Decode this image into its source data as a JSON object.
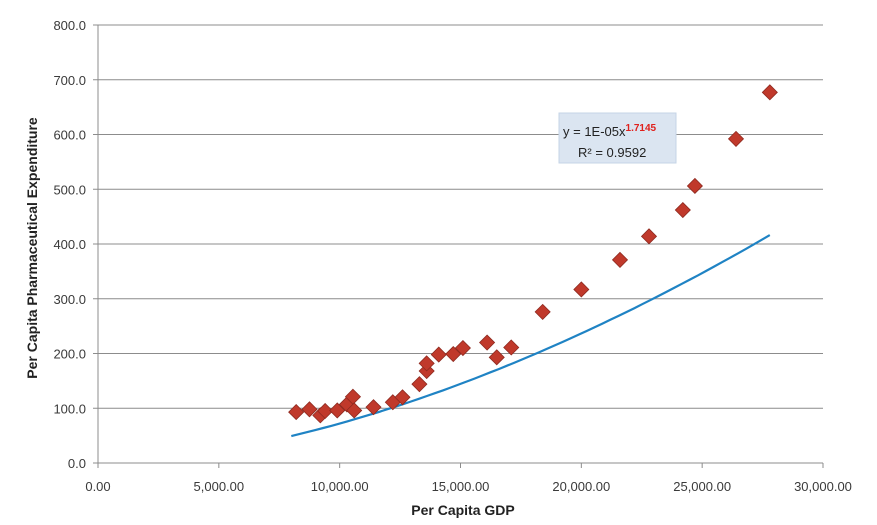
{
  "chart_data": {
    "type": "scatter",
    "title": "",
    "xlabel": "Per Capita GDP",
    "ylabel": "Per Capita Pharmaceutical Expenditure",
    "xlim": [
      0,
      30000
    ],
    "ylim": [
      0,
      800
    ],
    "x_ticks": [
      "0.00",
      "5,000.00",
      "10,000.00",
      "15,000.00",
      "20,000.00",
      "25,000.00",
      "30,000.00"
    ],
    "y_ticks": [
      "0.0",
      "100.0",
      "200.0",
      "300.0",
      "400.0",
      "500.0",
      "600.0",
      "700.0",
      "800.0"
    ],
    "grid": "horizontal",
    "marker_color": "#c0392b",
    "trendline_color": "#1f83c4",
    "points": [
      {
        "x": 8200,
        "y": 93
      },
      {
        "x": 8750,
        "y": 98
      },
      {
        "x": 9200,
        "y": 87
      },
      {
        "x": 9400,
        "y": 95
      },
      {
        "x": 9900,
        "y": 96
      },
      {
        "x": 10300,
        "y": 107
      },
      {
        "x": 10550,
        "y": 121
      },
      {
        "x": 10600,
        "y": 96
      },
      {
        "x": 11400,
        "y": 102
      },
      {
        "x": 12200,
        "y": 111
      },
      {
        "x": 12600,
        "y": 120
      },
      {
        "x": 13300,
        "y": 144
      },
      {
        "x": 13600,
        "y": 168
      },
      {
        "x": 13600,
        "y": 182
      },
      {
        "x": 14100,
        "y": 198
      },
      {
        "x": 14700,
        "y": 199
      },
      {
        "x": 15100,
        "y": 210
      },
      {
        "x": 16100,
        "y": 220
      },
      {
        "x": 16500,
        "y": 193
      },
      {
        "x": 17100,
        "y": 211
      },
      {
        "x": 18400,
        "y": 276
      },
      {
        "x": 20000,
        "y": 317
      },
      {
        "x": 21600,
        "y": 371
      },
      {
        "x": 22800,
        "y": 414
      },
      {
        "x": 24200,
        "y": 462
      },
      {
        "x": 24700,
        "y": 506
      },
      {
        "x": 26400,
        "y": 592
      },
      {
        "x": 27800,
        "y": 677
      }
    ],
    "trendline": {
      "type": "power",
      "x_range": [
        8000,
        27800
      ],
      "equation_prefix": "y = 1E-05x",
      "equation_exponent": "1.7145",
      "r_squared": "R² = 0.9592"
    }
  }
}
